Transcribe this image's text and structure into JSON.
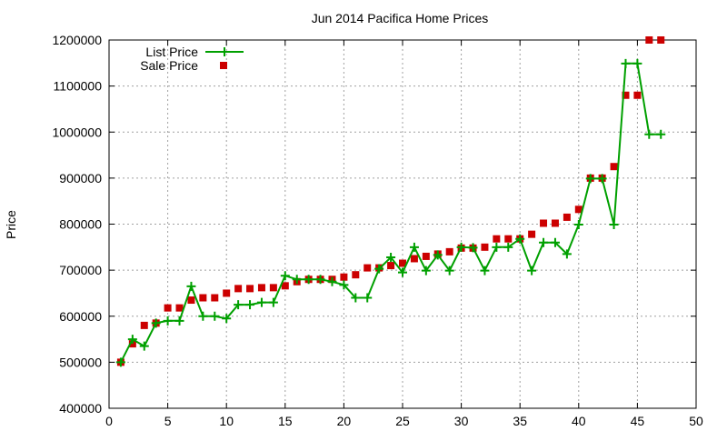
{
  "chart_data": {
    "type": "line",
    "title": "Jun 2014 Pacifica Home Prices",
    "xlabel": "",
    "ylabel": "Price",
    "xlim": [
      0,
      50
    ],
    "ylim": [
      400000,
      1200000
    ],
    "xticks": [
      0,
      5,
      10,
      15,
      20,
      25,
      30,
      35,
      40,
      45,
      50
    ],
    "yticks": [
      400000,
      500000,
      600000,
      700000,
      800000,
      900000,
      1000000,
      1100000,
      1200000
    ],
    "xtick_labels": [
      "0",
      "5",
      "10",
      "15",
      "20",
      "25",
      "30",
      "35",
      "40",
      "45",
      "50"
    ],
    "ytick_labels": [
      "400000",
      "500000",
      "600000",
      "700000",
      "800000",
      "900000",
      "1000000",
      "1100000",
      "1200000"
    ],
    "grid": true,
    "legend_position": "top-left",
    "x": [
      1,
      2,
      3,
      4,
      5,
      6,
      7,
      8,
      9,
      10,
      11,
      12,
      13,
      14,
      15,
      16,
      17,
      18,
      19,
      20,
      21,
      22,
      23,
      24,
      25,
      26,
      27,
      28,
      29,
      30,
      31,
      32,
      33,
      34,
      35,
      36,
      37,
      38,
      39,
      40,
      41,
      42,
      43,
      44,
      45,
      46,
      47
    ],
    "series": [
      {
        "name": "List Price",
        "style": "line-with-plus-markers",
        "color": "#00a000",
        "values": [
          500000,
          550000,
          535000,
          585000,
          590000,
          590000,
          665000,
          600000,
          600000,
          595000,
          625000,
          625000,
          630000,
          630000,
          688000,
          680000,
          680000,
          680000,
          675000,
          668000,
          640000,
          640000,
          703000,
          728000,
          695000,
          750000,
          699000,
          733000,
          699000,
          750000,
          749000,
          699000,
          750000,
          750000,
          768000,
          699000,
          760000,
          760000,
          735000,
          799000,
          899000,
          899000,
          799000,
          1149000,
          1149000,
          995000,
          995000
        ]
      },
      {
        "name": "Sale Price",
        "style": "square-markers",
        "color": "#cc0000",
        "values": [
          500000,
          540000,
          580000,
          585000,
          618000,
          618000,
          635000,
          640000,
          640000,
          650000,
          660000,
          660000,
          662000,
          662000,
          666000,
          675000,
          680000,
          680000,
          680000,
          685000,
          690000,
          705000,
          705000,
          710000,
          715000,
          725000,
          730000,
          735000,
          740000,
          748000,
          748000,
          750000,
          768000,
          768000,
          768000,
          778000,
          802000,
          802000,
          815000,
          832000,
          900000,
          900000,
          925000,
          1080000,
          1080000,
          1200000,
          1200000
        ]
      }
    ]
  }
}
